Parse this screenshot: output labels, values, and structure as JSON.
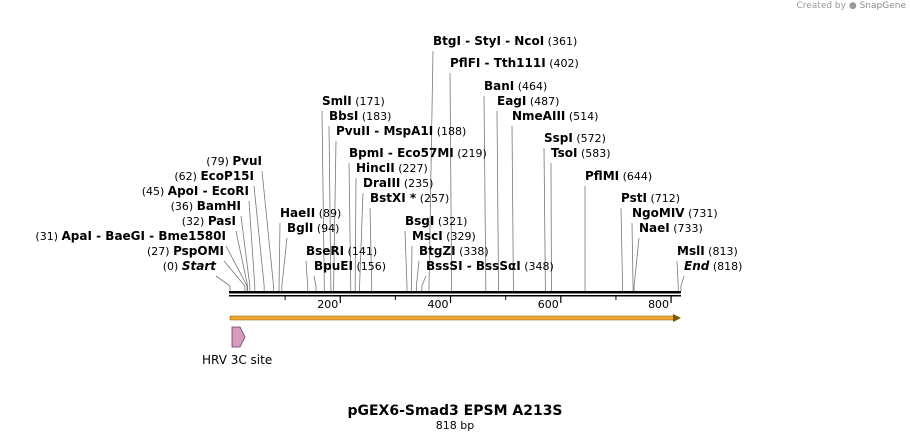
{
  "credit": {
    "prefix": "Created by",
    "brand": "SnapGene"
  },
  "plasmid": {
    "name": "pGEX6-Smad3 EPSM A213S",
    "length_label": "818 bp",
    "length": 818
  },
  "ruler": {
    "ticks": [
      "200",
      "400",
      "600",
      "800"
    ],
    "tick_values": [
      200,
      400,
      600,
      800
    ]
  },
  "feature": {
    "label": "HRV 3C site",
    "color": "#d49bbf"
  },
  "orf": {
    "color": "#f0a830"
  },
  "sites": [
    {
      "pos": 0,
      "pos_label": "(0)",
      "names": [
        "Start"
      ],
      "style": "terminal"
    },
    {
      "pos": 27,
      "pos_label": "(27)",
      "names": [
        "PspOMI"
      ]
    },
    {
      "pos": 31,
      "pos_label": "(31)",
      "names": [
        "ApaI",
        "BaeGI",
        "Bme1580I"
      ]
    },
    {
      "pos": 32,
      "pos_label": "(32)",
      "names": [
        "PasI"
      ]
    },
    {
      "pos": 36,
      "pos_label": "(36)",
      "names": [
        "BamHI"
      ]
    },
    {
      "pos": 45,
      "pos_label": "(45)",
      "names": [
        "ApoI",
        "EcoRI"
      ]
    },
    {
      "pos": 62,
      "pos_label": "(62)",
      "names": [
        "EcoP15I"
      ]
    },
    {
      "pos": 79,
      "pos_label": "(79)",
      "names": [
        "PvuI"
      ]
    },
    {
      "pos": 89,
      "pos_label": "(89)",
      "names": [
        "HaeII"
      ]
    },
    {
      "pos": 94,
      "pos_label": "(94)",
      "names": [
        "BglI"
      ]
    },
    {
      "pos": 141,
      "pos_label": "(141)",
      "names": [
        "BseRI"
      ]
    },
    {
      "pos": 156,
      "pos_label": "(156)",
      "names": [
        "BpuEI"
      ]
    },
    {
      "pos": 171,
      "pos_label": "(171)",
      "names": [
        "SmlI"
      ]
    },
    {
      "pos": 183,
      "pos_label": "(183)",
      "names": [
        "BbsI"
      ]
    },
    {
      "pos": 188,
      "pos_label": "(188)",
      "names": [
        "PvuII",
        "MspA1I"
      ]
    },
    {
      "pos": 219,
      "pos_label": "(219)",
      "names": [
        "BpmI",
        "Eco57MI"
      ]
    },
    {
      "pos": 227,
      "pos_label": "(227)",
      "names": [
        "HincII"
      ]
    },
    {
      "pos": 235,
      "pos_label": "(235)",
      "names": [
        "DraIII"
      ]
    },
    {
      "pos": 257,
      "pos_label": "(257)",
      "names": [
        "BstXI *"
      ]
    },
    {
      "pos": 321,
      "pos_label": "(321)",
      "names": [
        "BsgI"
      ]
    },
    {
      "pos": 329,
      "pos_label": "(329)",
      "names": [
        "MscI"
      ]
    },
    {
      "pos": 338,
      "pos_label": "(338)",
      "names": [
        "BtgZI"
      ]
    },
    {
      "pos": 348,
      "pos_label": "(348)",
      "names": [
        "BssSI",
        "BssSαI"
      ]
    },
    {
      "pos": 361,
      "pos_label": "(361)",
      "names": [
        "BtgI",
        "StyI",
        "NcoI"
      ]
    },
    {
      "pos": 402,
      "pos_label": "(402)",
      "names": [
        "PflFI",
        "Tth111I"
      ]
    },
    {
      "pos": 464,
      "pos_label": "(464)",
      "names": [
        "BanI"
      ]
    },
    {
      "pos": 487,
      "pos_label": "(487)",
      "names": [
        "EagI"
      ]
    },
    {
      "pos": 514,
      "pos_label": "(514)",
      "names": [
        "NmeAIII"
      ]
    },
    {
      "pos": 572,
      "pos_label": "(572)",
      "names": [
        "SspI"
      ]
    },
    {
      "pos": 583,
      "pos_label": "(583)",
      "names": [
        "TsoI"
      ]
    },
    {
      "pos": 644,
      "pos_label": "(644)",
      "names": [
        "PflMI"
      ]
    },
    {
      "pos": 712,
      "pos_label": "(712)",
      "names": [
        "PstI"
      ]
    },
    {
      "pos": 731,
      "pos_label": "(731)",
      "names": [
        "NgoMIV"
      ]
    },
    {
      "pos": 733,
      "pos_label": "(733)",
      "names": [
        "NaeI"
      ]
    },
    {
      "pos": 813,
      "pos_label": "(813)",
      "names": [
        "MslI"
      ]
    },
    {
      "pos": 818,
      "pos_label": "(818)",
      "names": [
        "End"
      ],
      "style": "terminal"
    }
  ]
}
